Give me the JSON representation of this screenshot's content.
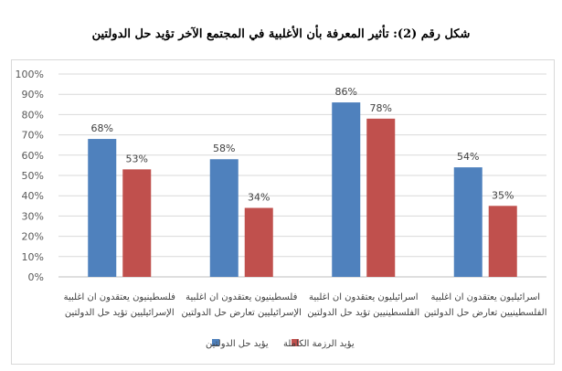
{
  "chart_data": {
    "type": "bar",
    "title": "شكل رقم (2): تأثير المعرفة بأن الأغلبية في المجتمع الآخر تؤيد حل الدولتين",
    "categories": [
      [
        "فلسطينيون يعتقدون ان اغلبية",
        "الإسرائيليين تؤيد حل الدولتين"
      ],
      [
        "فلسطينيون يعتقدون ان اغلبية",
        "الإسرائيليين تعارض حل الدولتين"
      ],
      [
        "اسرائيليون يعتقدون ان اغلبية",
        "الفلسطينيين تؤيد حل الدولتين"
      ],
      [
        "اسرائيليون يعتقدون ان اغلبية",
        "الفلسطينيين تعارض حل الدولتين"
      ]
    ],
    "series": [
      {
        "name": "يؤيد حل الدولتين",
        "color": "#4f81bd",
        "values": [
          68,
          58,
          86,
          54
        ]
      },
      {
        "name": "يؤيد الرزمة الكاملة",
        "color": "#c0504d",
        "values": [
          53,
          34,
          78,
          35
        ]
      }
    ],
    "yticks": [
      "0%",
      "10%",
      "20%",
      "30%",
      "40%",
      "50%",
      "60%",
      "70%",
      "80%",
      "90%",
      "100%"
    ],
    "ylim": [
      0,
      100
    ],
    "value_suffix": "%",
    "grid": true,
    "legend_position": "bottom"
  }
}
